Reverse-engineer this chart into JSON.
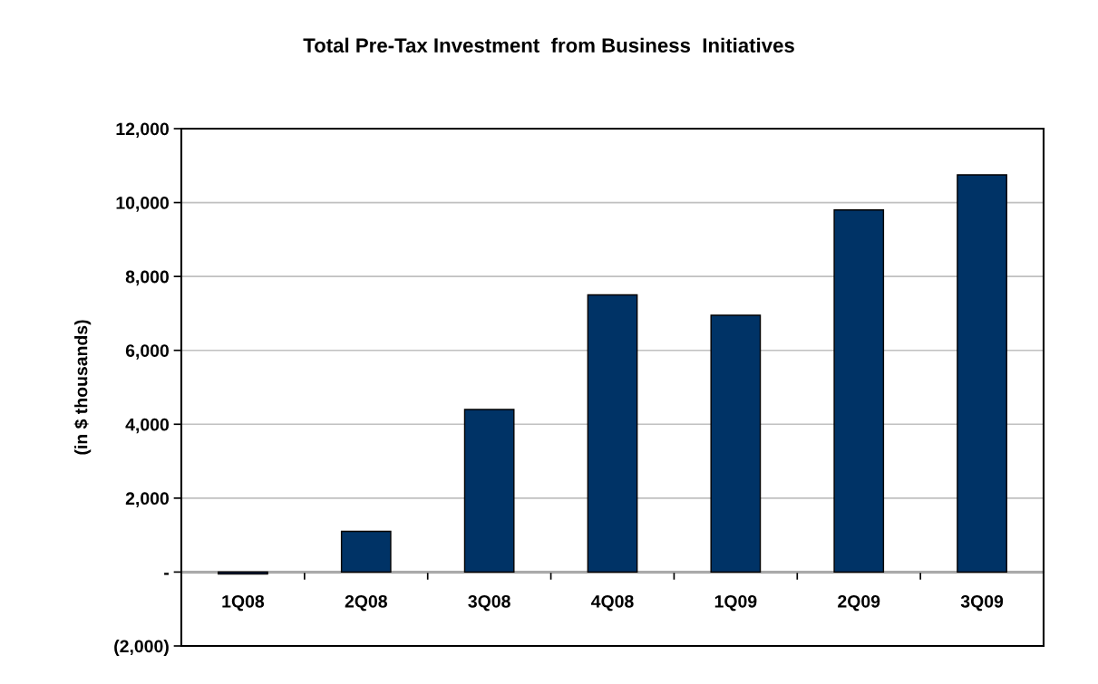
{
  "chart_data": {
    "type": "bar",
    "title": "Total Pre-Tax Investment  from Business  Initiatives",
    "ylabel": "(in $ thousands)",
    "categories": [
      "1Q08",
      "2Q08",
      "3Q08",
      "4Q08",
      "1Q09",
      "2Q09",
      "3Q09"
    ],
    "values": [
      -50,
      1100,
      4400,
      7500,
      6950,
      9800,
      10750
    ],
    "color": "#003366",
    "ylim": [
      -2000,
      12000
    ],
    "yticks": [
      {
        "value": -2000,
        "label": "(2,000)"
      },
      {
        "value": 0,
        "label": "-"
      },
      {
        "value": 2000,
        "label": "2,000"
      },
      {
        "value": 4000,
        "label": "4,000"
      },
      {
        "value": 6000,
        "label": "6,000"
      },
      {
        "value": 8000,
        "label": "8,000"
      },
      {
        "value": 10000,
        "label": "10,000"
      },
      {
        "value": 12000,
        "label": "12,000"
      }
    ],
    "grid": "y"
  }
}
